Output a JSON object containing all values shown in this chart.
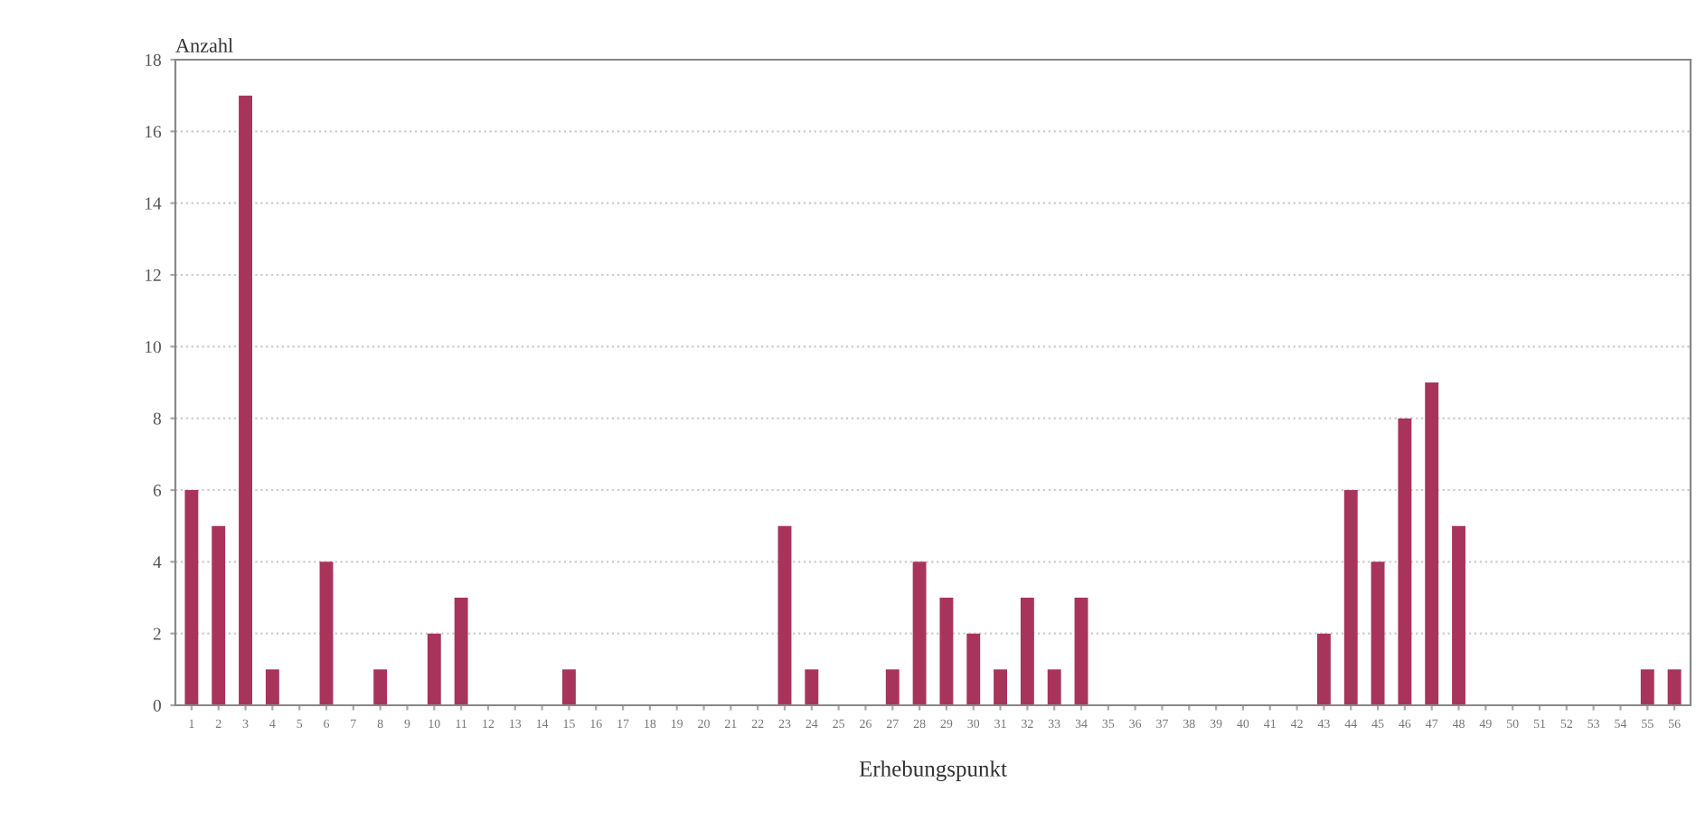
{
  "chart_data": {
    "type": "bar",
    "ylabel": "Anzahl",
    "xlabel": "Erhebungspunkt",
    "categories": [
      "1",
      "2",
      "3",
      "4",
      "5",
      "6",
      "7",
      "8",
      "9",
      "10",
      "11",
      "12",
      "13",
      "14",
      "15",
      "16",
      "17",
      "18",
      "19",
      "20",
      "21",
      "22",
      "23",
      "24",
      "25",
      "26",
      "27",
      "28",
      "29",
      "30",
      "31",
      "32",
      "33",
      "34",
      "35",
      "36",
      "37",
      "38",
      "39",
      "40",
      "41",
      "42",
      "43",
      "44",
      "45",
      "46",
      "47",
      "48",
      "49",
      "50",
      "51",
      "52",
      "53",
      "54",
      "55",
      "56"
    ],
    "values": [
      6,
      5,
      17,
      1,
      0,
      4,
      0,
      1,
      0,
      2,
      3,
      0,
      0,
      0,
      1,
      0,
      0,
      0,
      0,
      0,
      0,
      0,
      5,
      1,
      0,
      0,
      1,
      4,
      3,
      2,
      1,
      3,
      1,
      3,
      0,
      0,
      0,
      0,
      0,
      0,
      0,
      0,
      2,
      6,
      4,
      8,
      9,
      5,
      0,
      0,
      0,
      0,
      0,
      0,
      1,
      1
    ],
    "color": "#a8345c",
    "ylim": [
      0,
      18
    ],
    "yticks": [
      0,
      2,
      4,
      6,
      8,
      10,
      12,
      14,
      16,
      18
    ],
    "grid": "y"
  }
}
